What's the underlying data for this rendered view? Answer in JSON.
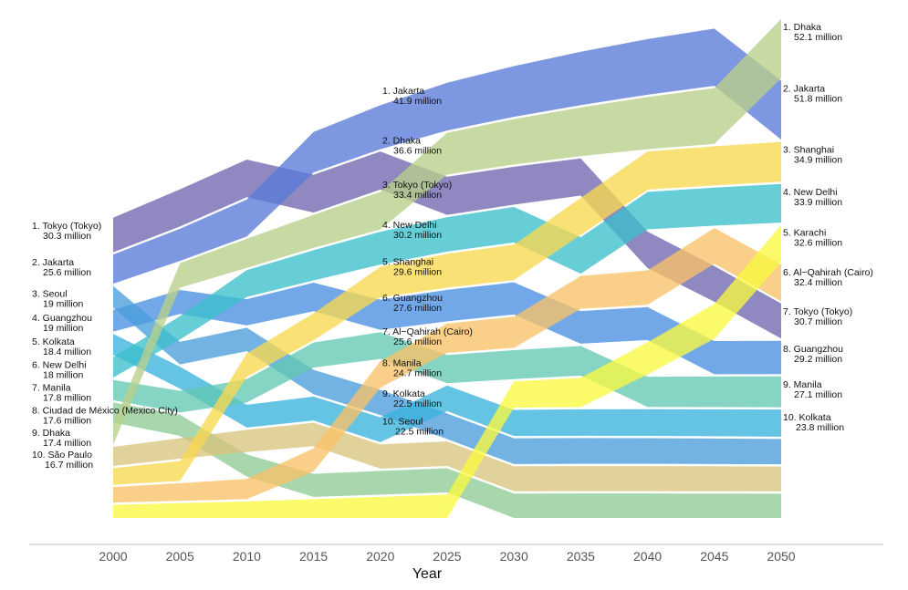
{
  "chart_data": {
    "type": "area",
    "subtype": "ranked stacked ribbon (bump) chart",
    "xlabel": "Year",
    "x": [
      2000,
      2005,
      2010,
      2015,
      2020,
      2025,
      2030,
      2035,
      2040,
      2045,
      2050
    ],
    "tick_labels": [
      "2000",
      "2005",
      "2010",
      "2015",
      "2020",
      "2025",
      "2030",
      "2035",
      "2040",
      "2045",
      "2050"
    ],
    "unit": "million",
    "labeled_years": [
      2000,
      2025,
      2050
    ],
    "top_n": 10,
    "grid": false,
    "series": [
      {
        "name": "Tokyo (Tokyo)",
        "color": "#6f66b0",
        "values": [
          30.3,
          32.6,
          33.0,
          33.2,
          33.4,
          33.4,
          33.2,
          32.6,
          32.0,
          31.3,
          30.7
        ]
      },
      {
        "name": "Jakarta",
        "color": "#5a7ad8",
        "values": [
          25.6,
          28.2,
          32.5,
          35.5,
          38.6,
          41.9,
          44.5,
          46.8,
          48.8,
          50.2,
          51.8
        ]
      },
      {
        "name": "Guangzhou",
        "color": "#4a90e2",
        "values": [
          19.0,
          21.0,
          23.0,
          25.0,
          26.5,
          27.6,
          28.2,
          28.6,
          28.9,
          29.1,
          29.2
        ]
      },
      {
        "name": "Seoul",
        "color": "#4a9edc",
        "values": [
          19.0,
          19.8,
          20.6,
          21.4,
          22.0,
          22.5,
          22.6,
          22.6,
          22.5,
          22.4,
          22.2
        ]
      },
      {
        "name": "Kolkata",
        "color": "#3ab4dc",
        "values": [
          18.4,
          19.2,
          20.0,
          21.0,
          21.8,
          22.5,
          22.9,
          23.2,
          23.4,
          23.6,
          23.8
        ]
      },
      {
        "name": "New Delhi",
        "color": "#3cbfcc",
        "values": [
          18.0,
          20.5,
          23.5,
          26.5,
          28.8,
          30.2,
          31.2,
          32.0,
          32.8,
          33.4,
          33.9
        ]
      },
      {
        "name": "Manila",
        "color": "#64c8b4",
        "values": [
          17.8,
          19.0,
          20.5,
          22.0,
          23.5,
          24.7,
          25.4,
          26.0,
          26.5,
          26.8,
          27.1
        ]
      },
      {
        "name": "Ciudad de México (Mexico City)",
        "color": "#90cc96",
        "values": [
          17.6,
          18.5,
          19.5,
          20.2,
          20.8,
          21.2,
          21.4,
          21.5,
          21.5,
          21.4,
          21.3
        ]
      },
      {
        "name": "Dhaka",
        "color": "#b8cf8a",
        "values": [
          17.4,
          21.5,
          25.5,
          29.0,
          33.0,
          36.6,
          39.8,
          42.8,
          45.8,
          49.0,
          52.1
        ]
      },
      {
        "name": "São Paulo",
        "color": "#d9c47e",
        "values": [
          16.7,
          18.0,
          19.5,
          20.5,
          21.2,
          21.6,
          21.9,
          22.0,
          22.0,
          21.9,
          21.8
        ]
      },
      {
        "name": "Shanghai",
        "color": "#f8d850",
        "values": [
          14.5,
          17.5,
          20.5,
          23.5,
          26.8,
          29.6,
          31.0,
          32.5,
          33.5,
          34.3,
          34.9
        ]
      },
      {
        "name": "Al−Qahirah (Cairo)",
        "color": "#f8c268",
        "values": [
          13.6,
          15.5,
          17.8,
          20.3,
          23.2,
          25.6,
          27.3,
          28.8,
          30.2,
          31.4,
          32.4
        ]
      },
      {
        "name": "Karachi",
        "color": "#f8f840",
        "values": [
          11.5,
          13.0,
          14.5,
          16.5,
          18.5,
          20.4,
          23.0,
          25.6,
          28.2,
          30.5,
          32.6
        ]
      }
    ]
  }
}
